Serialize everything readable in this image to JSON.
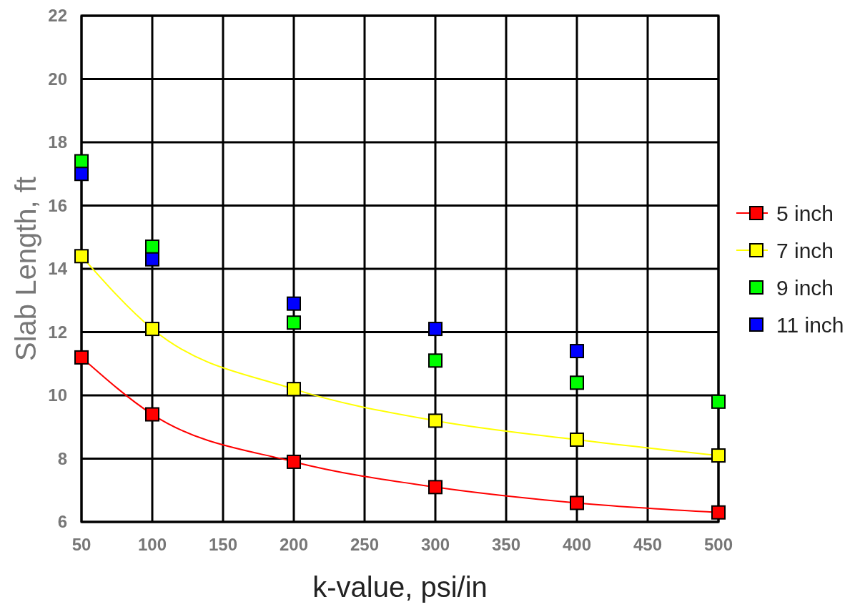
{
  "chart_data": {
    "type": "line",
    "xlabel": "k-value, psi/in",
    "ylabel": "Slab Length, ft",
    "xlim": [
      50,
      500
    ],
    "xticks": [
      50,
      100,
      150,
      200,
      250,
      300,
      350,
      400,
      450,
      500
    ],
    "ylim": [
      6,
      22
    ],
    "yticks": [
      6,
      8,
      10,
      12,
      14,
      16,
      18,
      20,
      22
    ],
    "grid": true,
    "legend": "right",
    "marker": "square",
    "series": [
      {
        "name": "5 inch",
        "color": "#ff0000",
        "x": [
          50,
          100,
          200,
          300,
          400,
          500
        ],
        "values": [
          11.2,
          9.4,
          7.9,
          7.1,
          6.6,
          6.3
        ]
      },
      {
        "name": "7 inch",
        "color": "#ffff00",
        "x": [
          50,
          100,
          200,
          300,
          400,
          500
        ],
        "values": [
          14.4,
          12.1,
          10.2,
          9.2,
          8.6,
          8.1
        ]
      },
      {
        "name": "9 inch",
        "color": "#00ff00",
        "type": "scatter",
        "x": [
          50,
          100,
          200,
          300,
          400,
          500
        ],
        "values": [
          17.4,
          14.7,
          12.3,
          11.1,
          10.4,
          9.8
        ]
      },
      {
        "name": "11 inch",
        "color": "#0000ff",
        "type": "scatter",
        "x": [
          50,
          100,
          200,
          300,
          400
        ],
        "values": [
          17.0,
          14.3,
          12.9,
          12.1,
          11.4
        ]
      }
    ]
  }
}
